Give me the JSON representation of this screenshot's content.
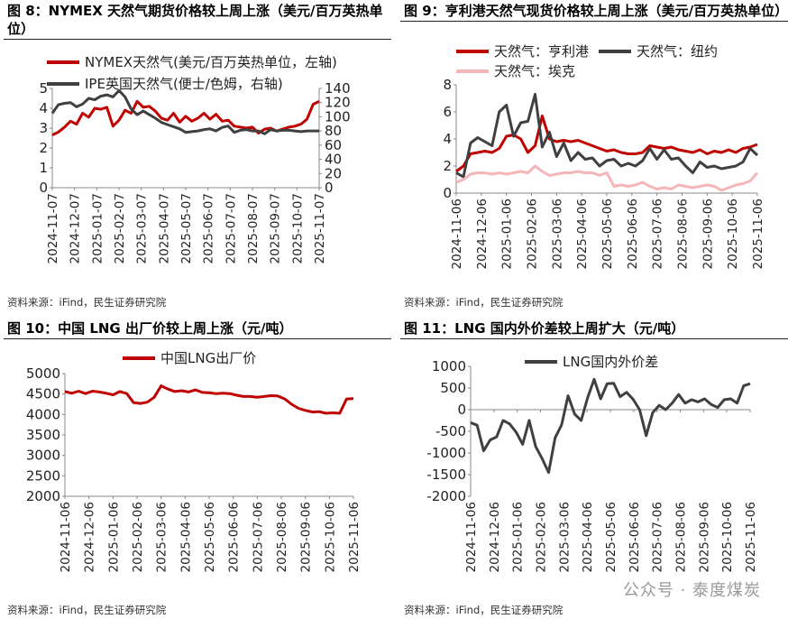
{
  "panels": [
    {
      "title": "图 8：NYMEX 天然气期货价格较上周上涨（美元/百万英热单位）",
      "source": "资料来源：iFind，民生证券研究院"
    },
    {
      "title": "图 9：亨利港天然气现货价格较上周上涨（美元/百万英热单位）",
      "source": "资料来源：iFind，民生证券研究院"
    },
    {
      "title": "图 10：中国 LNG 出厂价较上周上涨（元/吨）",
      "source": "资料来源：iFind，民生证券研究院"
    },
    {
      "title": "图 11：LNG 国内外价差较上周扩大（元/吨）",
      "source": "资料来源：iFind，民生证券研究院"
    }
  ],
  "watermark": "公众号 · 泰度煤炭",
  "chart_data": [
    {
      "type": "line",
      "x_ticks": [
        "2024-11-07",
        "2024-12-07",
        "2025-01-07",
        "2025-02-07",
        "2025-03-07",
        "2025-04-07",
        "2025-05-07",
        "2025-06-07",
        "2025-07-07",
        "2025-08-07",
        "2025-09-07",
        "2025-10-07",
        "2025-11-07"
      ],
      "ylim_left": [
        0,
        5
      ],
      "yticks_left": [
        "0",
        "1",
        "2",
        "3",
        "4",
        "5"
      ],
      "ylim_right": [
        0,
        140
      ],
      "yticks_right": [
        "0",
        "20",
        "40",
        "60",
        "80",
        "100",
        "120",
        "140"
      ],
      "legend_position": "top",
      "series": [
        {
          "name": "NYMEX天然气(美元/百万英热单位，左轴)",
          "axis": "left",
          "color": "#c00000",
          "values": [
            2.65,
            2.8,
            3.05,
            3.35,
            3.2,
            3.75,
            3.55,
            4.0,
            3.95,
            4.05,
            3.1,
            3.4,
            3.9,
            3.75,
            4.35,
            4.05,
            4.1,
            3.85,
            3.5,
            3.4,
            3.75,
            3.3,
            3.6,
            3.35,
            3.5,
            3.75,
            3.45,
            3.7,
            3.35,
            3.4,
            3.1,
            3.05,
            3.0,
            3.05,
            2.75,
            2.95,
            3.0,
            2.85,
            2.95,
            3.05,
            3.1,
            3.2,
            3.45,
            4.2,
            4.35
          ]
        },
        {
          "name": "IPE英国天然气(便士/色姆，右轴)",
          "axis": "right",
          "color": "#404040",
          "values": [
            105,
            117,
            119,
            120,
            114,
            118,
            126,
            124,
            129,
            131,
            128,
            137,
            128,
            111,
            103,
            108,
            103,
            98,
            92,
            89,
            86,
            83,
            78,
            79,
            80,
            82,
            83,
            80,
            85,
            87,
            78,
            81,
            82,
            80,
            80,
            76,
            82,
            80,
            81,
            81,
            80,
            79,
            80,
            80,
            80
          ]
        }
      ]
    },
    {
      "type": "line",
      "x_ticks": [
        "2024-11-06",
        "2024-12-06",
        "2025-01-06",
        "2025-02-06",
        "2025-03-06",
        "2025-04-06",
        "2025-05-06",
        "2025-06-06",
        "2025-07-06",
        "2025-08-06",
        "2025-09-06",
        "2025-10-06",
        "2025-11-06"
      ],
      "ylim": [
        0,
        8
      ],
      "yticks": [
        "0",
        "2",
        "4",
        "6",
        "8"
      ],
      "legend_position": "top",
      "series": [
        {
          "name": "天然气：亨利港",
          "color": "#c00000",
          "values": [
            1.6,
            2.0,
            2.9,
            3.0,
            3.1,
            3.0,
            3.3,
            4.2,
            4.3,
            4.0,
            3.0,
            3.5,
            5.7,
            4.0,
            3.8,
            3.9,
            3.8,
            3.9,
            3.7,
            3.5,
            3.3,
            3.1,
            3.2,
            3.0,
            2.9,
            2.9,
            3.0,
            3.5,
            3.4,
            3.3,
            3.4,
            3.2,
            3.1,
            3.0,
            3.2,
            2.9,
            3.1,
            3.0,
            3.2,
            3.0,
            3.3,
            3.4,
            3.6
          ]
        },
        {
          "name": "天然气：纽约",
          "color": "#404040",
          "values": [
            1.5,
            1.2,
            3.7,
            4.1,
            3.8,
            3.5,
            6.0,
            6.5,
            4.2,
            5.2,
            5.3,
            7.3,
            3.4,
            4.5,
            2.7,
            3.7,
            2.4,
            3.0,
            2.5,
            2.6,
            2.0,
            2.4,
            2.5,
            2.0,
            2.2,
            2.0,
            2.4,
            3.3,
            2.5,
            3.2,
            2.5,
            2.6,
            2.0,
            1.5,
            2.3,
            1.9,
            2.0,
            1.8,
            1.9,
            2.0,
            2.3,
            3.3,
            2.8
          ]
        },
        {
          "name": "天然气：埃克",
          "color": "#f4b6b6",
          "values": [
            0.8,
            1.0,
            1.4,
            1.5,
            1.5,
            1.4,
            1.5,
            1.4,
            1.5,
            1.6,
            1.5,
            2.0,
            1.6,
            1.3,
            1.4,
            1.5,
            1.5,
            1.6,
            1.5,
            1.5,
            1.3,
            1.5,
            0.5,
            0.6,
            0.5,
            0.6,
            0.8,
            0.5,
            0.3,
            0.4,
            0.3,
            0.6,
            0.5,
            0.4,
            0.5,
            0.6,
            0.5,
            0.2,
            0.4,
            0.6,
            0.7,
            0.9,
            1.5
          ]
        }
      ]
    },
    {
      "type": "line",
      "x_ticks": [
        "2024-11-06",
        "2024-12-06",
        "2025-01-06",
        "2025-02-06",
        "2025-03-06",
        "2025-04-06",
        "2025-05-06",
        "2025-06-06",
        "2025-07-06",
        "2025-08-06",
        "2025-09-06",
        "2025-10-06",
        "2025-11-06"
      ],
      "ylim": [
        2000,
        5000
      ],
      "yticks": [
        "2000",
        "2500",
        "3000",
        "3500",
        "4000",
        "4500",
        "5000"
      ],
      "legend_position": "top",
      "series": [
        {
          "name": "中国LNG出厂价",
          "color": "#c00000",
          "values": [
            4560,
            4520,
            4570,
            4510,
            4570,
            4550,
            4520,
            4480,
            4560,
            4510,
            4290,
            4270,
            4300,
            4420,
            4700,
            4620,
            4560,
            4580,
            4550,
            4600,
            4540,
            4530,
            4510,
            4520,
            4510,
            4470,
            4440,
            4440,
            4420,
            4440,
            4460,
            4450,
            4380,
            4250,
            4150,
            4100,
            4060,
            4070,
            4030,
            4040,
            4030,
            4380,
            4390
          ]
        }
      ]
    },
    {
      "type": "line",
      "x_ticks": [
        "2024-11-06",
        "2024-12-06",
        "2025-01-06",
        "2025-02-06",
        "2025-03-06",
        "2025-04-06",
        "2025-05-06",
        "2025-06-06",
        "2025-07-06",
        "2025-08-06",
        "2025-09-06",
        "2025-10-06",
        "2025-11-06"
      ],
      "ylim": [
        -2000,
        1000
      ],
      "yticks": [
        "-2000",
        "-1500",
        "-1000",
        "-500",
        "0",
        "500",
        "1000"
      ],
      "legend_position": "top",
      "series": [
        {
          "name": "LNG国内外价差",
          "color": "#404040",
          "values": [
            -300,
            -360,
            -950,
            -700,
            -630,
            -250,
            -330,
            -520,
            -800,
            -250,
            -850,
            -1130,
            -1450,
            -650,
            -350,
            320,
            -100,
            -250,
            280,
            700,
            250,
            600,
            610,
            300,
            400,
            240,
            0,
            -600,
            -70,
            100,
            0,
            150,
            350,
            150,
            230,
            180,
            250,
            120,
            50,
            230,
            250,
            150,
            550,
            600
          ]
        }
      ]
    }
  ]
}
